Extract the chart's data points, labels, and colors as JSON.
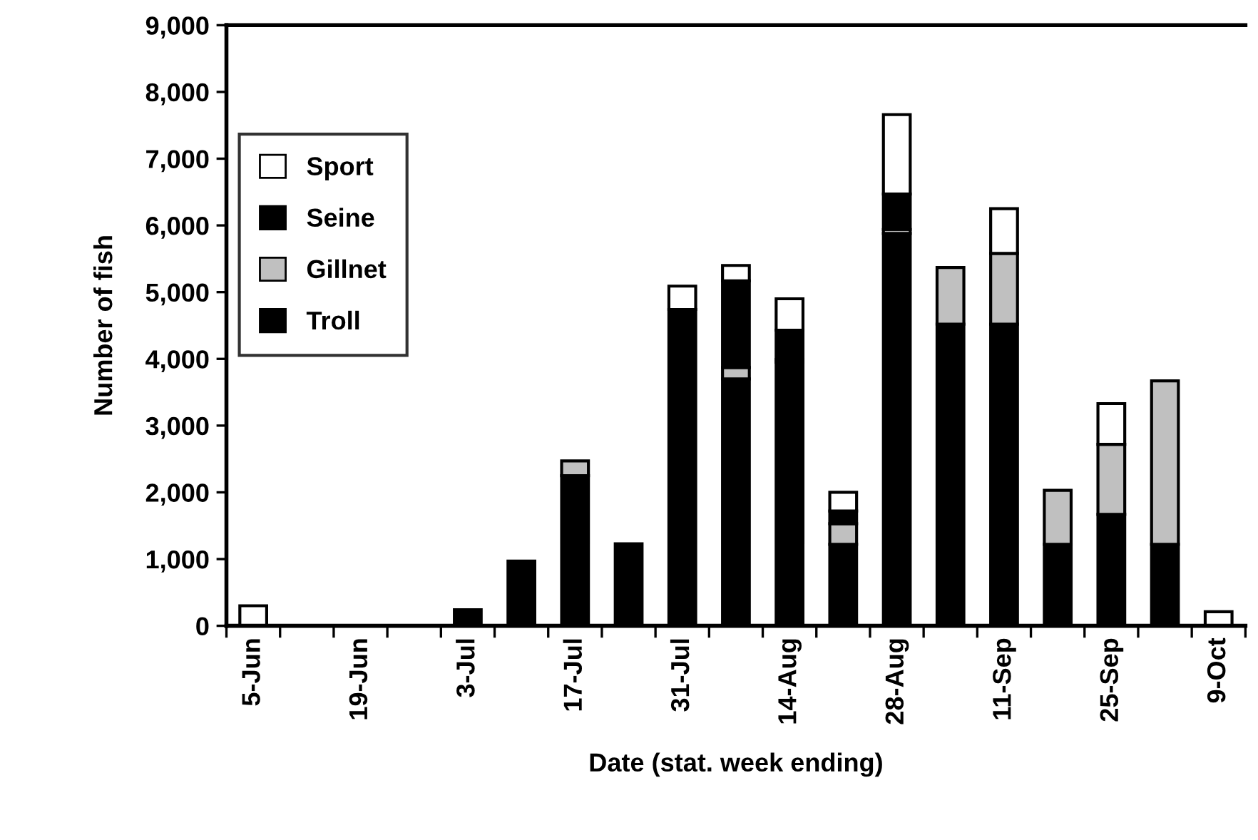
{
  "chart_data": {
    "type": "bar",
    "stacked": true,
    "xlabel": "Date (stat. week ending)",
    "ylabel": "Number of fish",
    "categories": [
      "5-Jun",
      null,
      "19-Jun",
      null,
      "3-Jul",
      null,
      "17-Jul",
      null,
      "31-Jul",
      null,
      "14-Aug",
      null,
      "28-Aug",
      null,
      "11-Sep",
      null,
      "25-Sep",
      null,
      "9-Oct"
    ],
    "series": [
      {
        "name": "Troll",
        "color": "#000000",
        "values": [
          null,
          null,
          null,
          null,
          240,
          970,
          2250,
          1230,
          4740,
          3700,
          3950,
          1220,
          5880,
          4520,
          4520,
          1220,
          1670,
          1220,
          null
        ]
      },
      {
        "name": "Gillnet",
        "color": "#c0c0c0",
        "values": [
          null,
          null,
          null,
          null,
          null,
          null,
          220,
          null,
          null,
          170,
          40,
          310,
          60,
          850,
          1060,
          810,
          1050,
          2450,
          null
        ]
      },
      {
        "name": "Seine",
        "color": "#000000",
        "values": [
          null,
          null,
          null,
          null,
          null,
          null,
          null,
          null,
          null,
          1300,
          440,
          190,
          530,
          null,
          null,
          null,
          null,
          null,
          null
        ]
      },
      {
        "name": "Sport",
        "color": "#ffffff",
        "values": [
          300,
          null,
          null,
          null,
          null,
          null,
          null,
          null,
          350,
          230,
          470,
          280,
          1190,
          null,
          670,
          null,
          610,
          null,
          210
        ]
      }
    ],
    "ylim": [
      0,
      9000
    ],
    "yticks": [
      0,
      {
        "value": 1000,
        "label": "1,000"
      },
      {
        "value": 2000,
        "label": "2,000"
      },
      {
        "value": 3000,
        "label": "3,000"
      },
      {
        "value": 4000,
        "label": "4,000"
      },
      {
        "value": 5000,
        "label": "5,000"
      },
      {
        "value": 6000,
        "label": "6,000"
      },
      {
        "value": 7000,
        "label": "7,000"
      },
      {
        "value": 8000,
        "label": "8,000"
      },
      {
        "value": 9000,
        "label": "9,000"
      }
    ],
    "legend": "top left"
  }
}
